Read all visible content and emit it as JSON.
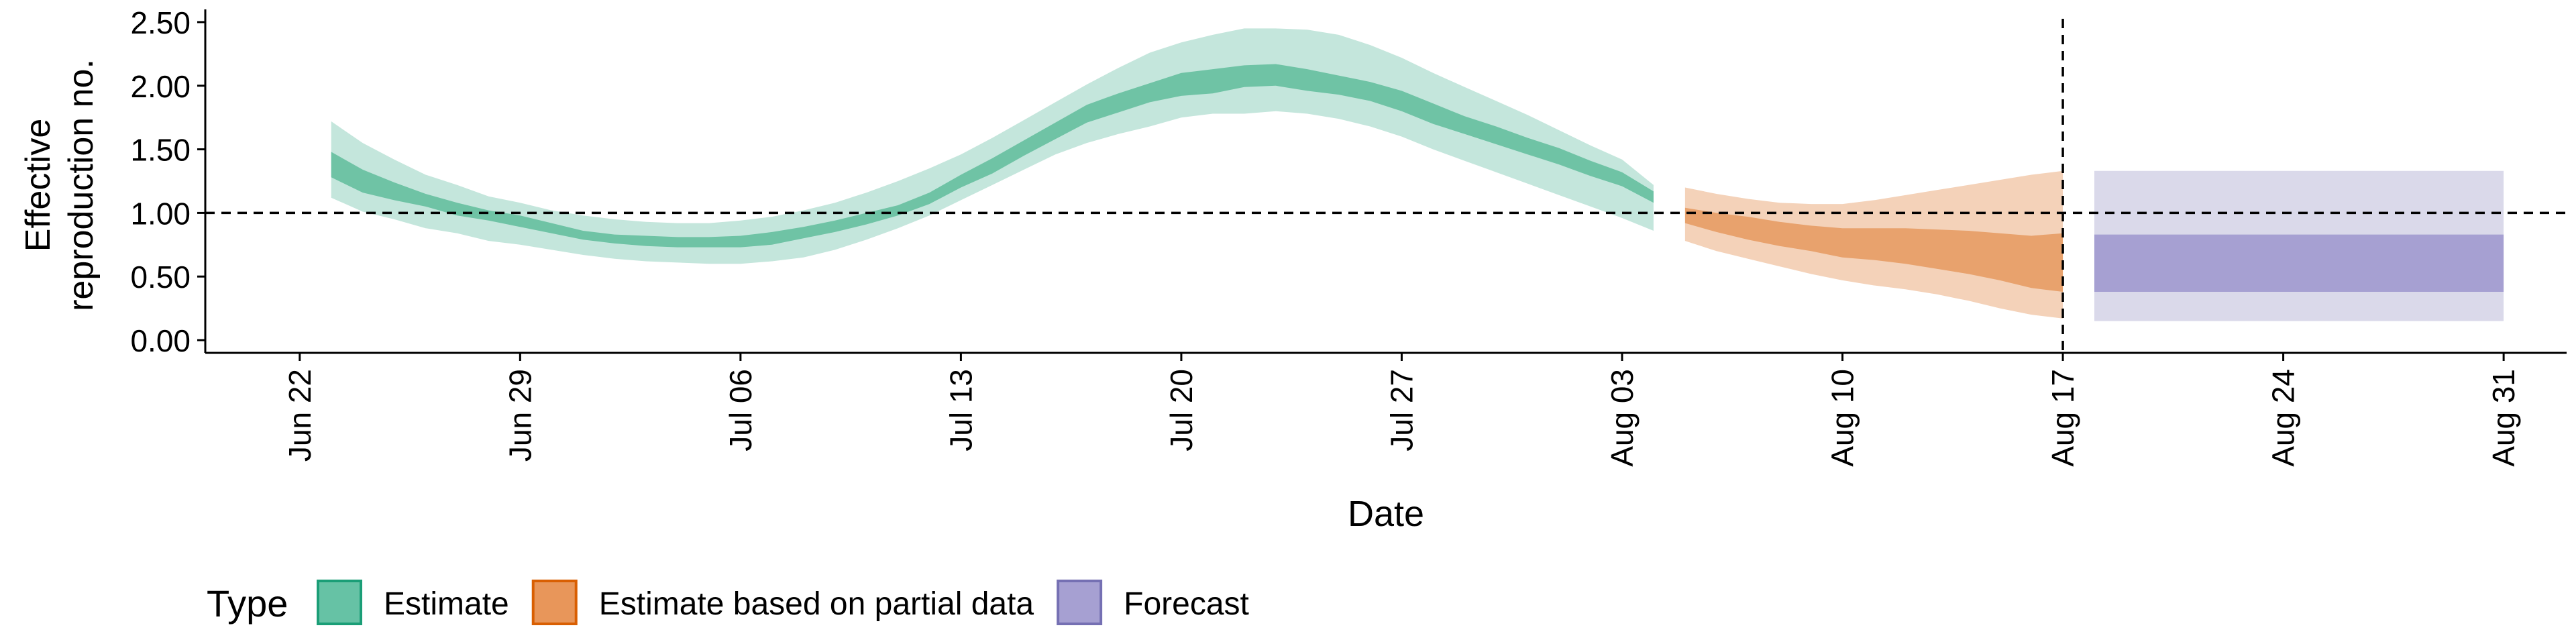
{
  "chart_data": {
    "type": "area",
    "title": "",
    "xlabel": "Date",
    "ylabel": "Effective\nreproduction no.",
    "x_tick_labels": [
      "Jun 22",
      "Jun 29",
      "Jul 06",
      "Jul 13",
      "Jul 20",
      "Jul 27",
      "Aug 03",
      "Aug 10",
      "Aug 17",
      "Aug 24",
      "Aug 31"
    ],
    "x_ticks": [
      "2020-06-22",
      "2020-06-29",
      "2020-07-06",
      "2020-07-13",
      "2020-07-20",
      "2020-07-27",
      "2020-08-03",
      "2020-08-10",
      "2020-08-17",
      "2020-08-24",
      "2020-08-31"
    ],
    "y_tick_labels": [
      "0.00",
      "0.50",
      "1.00",
      "1.50",
      "2.00",
      "2.50"
    ],
    "y_ticks": [
      0,
      0.5,
      1.0,
      1.5,
      2.0,
      2.5
    ],
    "xlim": [
      "2020-06-19",
      "2020-09-02"
    ],
    "ylim": [
      -0.1,
      2.6
    ],
    "grid": false,
    "reference_lines": [
      {
        "orientation": "horizontal",
        "y": 1.0,
        "style": "dashed"
      },
      {
        "orientation": "vertical",
        "x": "2020-08-17",
        "style": "dashed"
      }
    ],
    "legend": {
      "title": "Type",
      "position": "bottom",
      "items": [
        {
          "label": "Estimate",
          "fill": "#66c2a5",
          "stroke": "#1b9e77"
        },
        {
          "label": "Estimate based on partial data",
          "fill": "#e8965a",
          "stroke": "#d95f02"
        },
        {
          "label": "Forecast",
          "fill": "#a6a0d2",
          "stroke": "#7570b3"
        }
      ]
    },
    "series": [
      {
        "name": "Estimate",
        "colors": {
          "outer": "#c4e6dc",
          "inner": "#6fc3a5"
        },
        "x": [
          "2020-06-23",
          "2020-06-24",
          "2020-06-25",
          "2020-06-26",
          "2020-06-27",
          "2020-06-28",
          "2020-06-29",
          "2020-06-30",
          "2020-07-01",
          "2020-07-02",
          "2020-07-03",
          "2020-07-04",
          "2020-07-05",
          "2020-07-06",
          "2020-07-07",
          "2020-07-08",
          "2020-07-09",
          "2020-07-10",
          "2020-07-11",
          "2020-07-12",
          "2020-07-13",
          "2020-07-14",
          "2020-07-15",
          "2020-07-16",
          "2020-07-17",
          "2020-07-18",
          "2020-07-19",
          "2020-07-20",
          "2020-07-21",
          "2020-07-22",
          "2020-07-23",
          "2020-07-24",
          "2020-07-25",
          "2020-07-26",
          "2020-07-27",
          "2020-07-28",
          "2020-07-29",
          "2020-07-30",
          "2020-07-31",
          "2020-08-01",
          "2020-08-02",
          "2020-08-03",
          "2020-08-04"
        ],
        "lower_outer": [
          1.12,
          1.01,
          0.95,
          0.88,
          0.84,
          0.78,
          0.75,
          0.71,
          0.67,
          0.64,
          0.62,
          0.61,
          0.6,
          0.6,
          0.62,
          0.65,
          0.71,
          0.79,
          0.88,
          0.98,
          1.1,
          1.22,
          1.34,
          1.46,
          1.55,
          1.62,
          1.68,
          1.75,
          1.78,
          1.78,
          1.8,
          1.78,
          1.74,
          1.68,
          1.6,
          1.5,
          1.41,
          1.32,
          1.23,
          1.14,
          1.05,
          0.96,
          0.86
        ],
        "lower_inner": [
          1.28,
          1.16,
          1.1,
          1.05,
          0.98,
          0.94,
          0.89,
          0.84,
          0.79,
          0.76,
          0.74,
          0.73,
          0.73,
          0.73,
          0.75,
          0.8,
          0.85,
          0.91,
          0.98,
          1.07,
          1.2,
          1.31,
          1.45,
          1.58,
          1.71,
          1.79,
          1.87,
          1.92,
          1.94,
          1.99,
          2.0,
          1.96,
          1.93,
          1.88,
          1.8,
          1.7,
          1.62,
          1.54,
          1.46,
          1.38,
          1.29,
          1.21,
          1.08
        ],
        "upper_inner": [
          1.48,
          1.34,
          1.24,
          1.15,
          1.08,
          1.02,
          0.98,
          0.92,
          0.86,
          0.83,
          0.82,
          0.81,
          0.81,
          0.82,
          0.85,
          0.89,
          0.94,
          1.0,
          1.06,
          1.16,
          1.3,
          1.43,
          1.57,
          1.71,
          1.85,
          1.94,
          2.02,
          2.1,
          2.13,
          2.16,
          2.17,
          2.13,
          2.08,
          2.03,
          1.96,
          1.86,
          1.76,
          1.68,
          1.59,
          1.51,
          1.41,
          1.32,
          1.17
        ],
        "upper_outer": [
          1.72,
          1.55,
          1.42,
          1.3,
          1.22,
          1.13,
          1.08,
          1.02,
          0.98,
          0.95,
          0.93,
          0.92,
          0.92,
          0.94,
          0.97,
          1.02,
          1.08,
          1.16,
          1.25,
          1.35,
          1.46,
          1.59,
          1.73,
          1.87,
          2.01,
          2.14,
          2.26,
          2.34,
          2.4,
          2.45,
          2.45,
          2.44,
          2.4,
          2.32,
          2.22,
          2.1,
          1.99,
          1.88,
          1.77,
          1.65,
          1.53,
          1.42,
          1.22
        ]
      },
      {
        "name": "Estimate based on partial data",
        "colors": {
          "outer": "#f4d2b9",
          "inner": "#e8a26d"
        },
        "x": [
          "2020-08-05",
          "2020-08-06",
          "2020-08-07",
          "2020-08-08",
          "2020-08-09",
          "2020-08-10",
          "2020-08-11",
          "2020-08-12",
          "2020-08-13",
          "2020-08-14",
          "2020-08-15",
          "2020-08-16",
          "2020-08-17"
        ],
        "lower_outer": [
          0.78,
          0.7,
          0.64,
          0.58,
          0.52,
          0.47,
          0.43,
          0.4,
          0.36,
          0.31,
          0.25,
          0.2,
          0.17
        ],
        "lower_inner": [
          0.92,
          0.85,
          0.79,
          0.74,
          0.7,
          0.65,
          0.63,
          0.6,
          0.56,
          0.52,
          0.47,
          0.41,
          0.38
        ],
        "upper_inner": [
          1.04,
          1.0,
          0.97,
          0.93,
          0.9,
          0.88,
          0.88,
          0.88,
          0.87,
          0.86,
          0.84,
          0.82,
          0.84
        ],
        "upper_outer": [
          1.2,
          1.15,
          1.11,
          1.08,
          1.07,
          1.07,
          1.1,
          1.14,
          1.18,
          1.22,
          1.26,
          1.3,
          1.33
        ]
      },
      {
        "name": "Forecast",
        "colors": {
          "outer": "#dad9ea",
          "inner": "#a6a0d2"
        },
        "x": [
          "2020-08-18",
          "2020-08-31"
        ],
        "lower_outer": [
          0.15,
          0.15
        ],
        "lower_inner": [
          0.38,
          0.38
        ],
        "upper_inner": [
          0.83,
          0.83
        ],
        "upper_outer": [
          1.33,
          1.33
        ]
      }
    ]
  }
}
